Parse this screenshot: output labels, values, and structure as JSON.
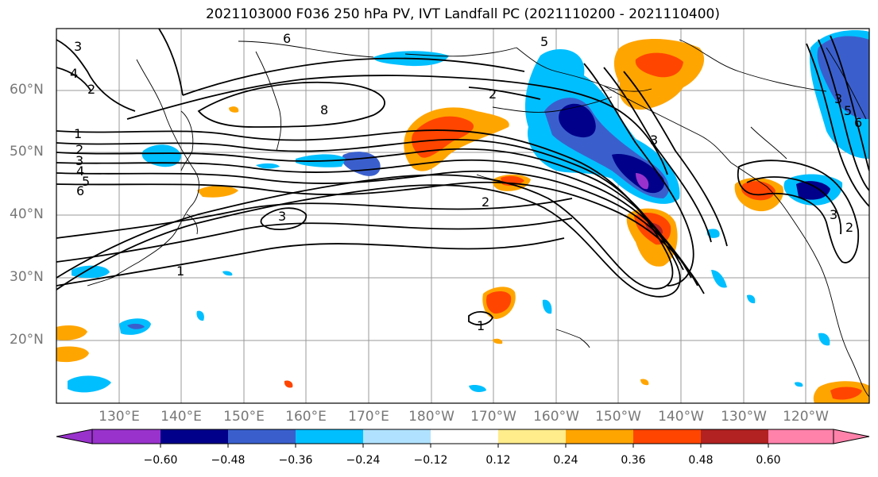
{
  "title": "2021103000 F036 250 hPa PV, IVT Landfall PC (2021110200 - 2021110400)",
  "lat_labels": [
    "60°N",
    "50°N",
    "40°N",
    "30°N",
    "20°N"
  ],
  "lon_labels": [
    "130°E",
    "140°E",
    "150°E",
    "160°E",
    "170°E",
    "180°W",
    "170°W",
    "160°W",
    "150°W",
    "140°W",
    "130°W",
    "120°W"
  ],
  "colorbar": {
    "ticks": [
      "−0.60",
      "−0.48",
      "−0.36",
      "−0.24",
      "−0.12",
      "0.12",
      "0.24",
      "0.36",
      "0.48",
      "0.60"
    ],
    "colors": [
      "#9932cc",
      "#00008b",
      "#3a5fcd",
      "#00bfff",
      "#b0e2ff",
      "#ffffff",
      "#ffec8b",
      "#ffa500",
      "#ff4500",
      "#b22222",
      "#ff82ab"
    ]
  },
  "contour_labels": [
    "3",
    "4",
    "2",
    "6",
    "8",
    "1",
    "2",
    "3",
    "4",
    "5",
    "6",
    "2",
    "3",
    "2",
    "1",
    "1",
    "3",
    "5",
    "3",
    "2",
    "3",
    "5",
    "6"
  ],
  "colors": {
    "purple": "#9932cc",
    "navy": "#00008b",
    "blue": "#3a5fcd",
    "sky": "#00bfff",
    "lightblue": "#b0e2ff",
    "yellow": "#ffec8b",
    "orange": "#ffa500",
    "red": "#ff4500",
    "darkred": "#b22222",
    "pink": "#ff82ab"
  }
}
